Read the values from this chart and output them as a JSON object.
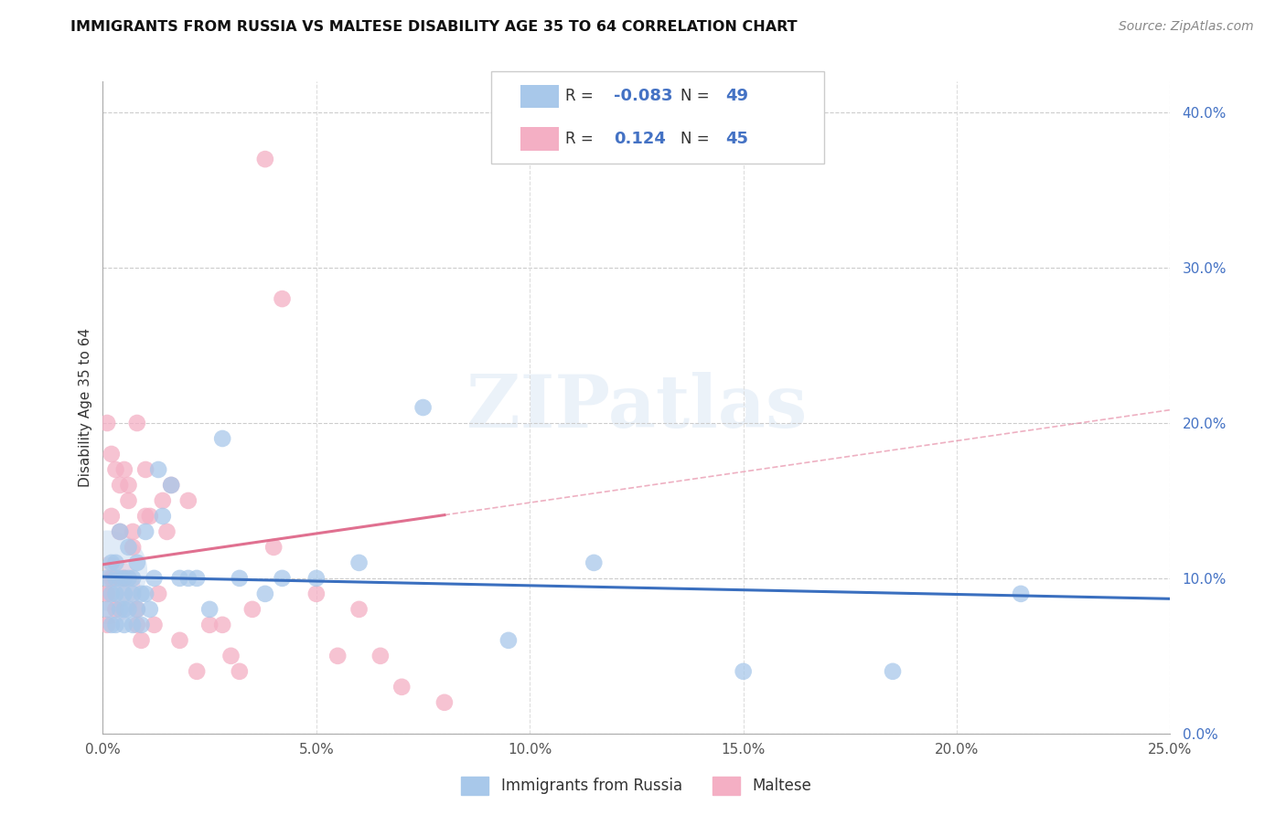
{
  "title": "IMMIGRANTS FROM RUSSIA VS MALTESE DISABILITY AGE 35 TO 64 CORRELATION CHART",
  "source": "Source: ZipAtlas.com",
  "ylabel_label": "Disability Age 35 to 64",
  "legend_label1": "Immigrants from Russia",
  "legend_label2": "Maltese",
  "R1_text": "-0.083",
  "N1_text": "49",
  "R2_text": "0.124",
  "N2_text": "45",
  "color1": "#a8c8ea",
  "color2": "#f4afc4",
  "line_color1": "#3a6fbf",
  "line_color2": "#e07090",
  "xlim": [
    0.0,
    0.25
  ],
  "ylim": [
    0.0,
    0.42
  ],
  "xticks": [
    0.0,
    0.05,
    0.1,
    0.15,
    0.2,
    0.25
  ],
  "xtick_labels": [
    "0.0%",
    "5.0%",
    "10.0%",
    "15.0%",
    "20.0%",
    "25.0%"
  ],
  "ytick_labels_right": [
    "0.0%",
    "10.0%",
    "20.0%",
    "30.0%",
    "40.0%"
  ],
  "yticks": [
    0.0,
    0.1,
    0.2,
    0.3,
    0.4
  ],
  "watermark": "ZIPatlas",
  "scatter1_x": [
    0.001,
    0.001,
    0.002,
    0.002,
    0.002,
    0.003,
    0.003,
    0.003,
    0.003,
    0.004,
    0.004,
    0.004,
    0.005,
    0.005,
    0.005,
    0.005,
    0.006,
    0.006,
    0.006,
    0.007,
    0.007,
    0.007,
    0.008,
    0.008,
    0.009,
    0.009,
    0.01,
    0.01,
    0.011,
    0.012,
    0.013,
    0.014,
    0.016,
    0.018,
    0.02,
    0.022,
    0.025,
    0.028,
    0.032,
    0.038,
    0.042,
    0.05,
    0.06,
    0.075,
    0.095,
    0.115,
    0.15,
    0.185,
    0.215
  ],
  "scatter1_y": [
    0.1,
    0.08,
    0.09,
    0.07,
    0.11,
    0.09,
    0.07,
    0.11,
    0.1,
    0.1,
    0.08,
    0.13,
    0.09,
    0.07,
    0.1,
    0.08,
    0.1,
    0.12,
    0.08,
    0.09,
    0.07,
    0.1,
    0.11,
    0.08,
    0.09,
    0.07,
    0.09,
    0.13,
    0.08,
    0.1,
    0.17,
    0.14,
    0.16,
    0.1,
    0.1,
    0.1,
    0.08,
    0.19,
    0.1,
    0.09,
    0.1,
    0.1,
    0.11,
    0.21,
    0.06,
    0.11,
    0.04,
    0.04,
    0.09
  ],
  "scatter2_x": [
    0.001,
    0.001,
    0.001,
    0.002,
    0.002,
    0.002,
    0.003,
    0.003,
    0.004,
    0.004,
    0.005,
    0.005,
    0.006,
    0.006,
    0.007,
    0.007,
    0.008,
    0.008,
    0.008,
    0.009,
    0.01,
    0.01,
    0.011,
    0.012,
    0.013,
    0.014,
    0.015,
    0.016,
    0.018,
    0.02,
    0.022,
    0.025,
    0.028,
    0.03,
    0.032,
    0.035,
    0.038,
    0.04,
    0.042,
    0.05,
    0.055,
    0.06,
    0.065,
    0.07,
    0.08
  ],
  "scatter2_y": [
    0.2,
    0.09,
    0.07,
    0.18,
    0.1,
    0.14,
    0.08,
    0.17,
    0.13,
    0.16,
    0.17,
    0.1,
    0.16,
    0.15,
    0.13,
    0.12,
    0.08,
    0.2,
    0.07,
    0.06,
    0.14,
    0.17,
    0.14,
    0.07,
    0.09,
    0.15,
    0.13,
    0.16,
    0.06,
    0.15,
    0.04,
    0.07,
    0.07,
    0.05,
    0.04,
    0.08,
    0.37,
    0.12,
    0.28,
    0.09,
    0.05,
    0.08,
    0.05,
    0.03,
    0.02
  ]
}
